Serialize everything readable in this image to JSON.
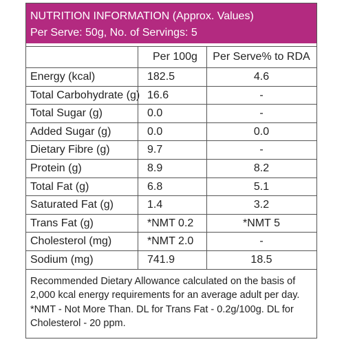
{
  "header": {
    "title": "NUTRITION INFORMATION (Approx. Values)",
    "subtitle": "Per Serve: 50g, No. of Servings: 5"
  },
  "table": {
    "columns": [
      "Per 100g",
      "Per Serve% to RDA"
    ],
    "rows": [
      [
        "Energy (kcal)",
        "182.5",
        "4.6"
      ],
      [
        "Total Carbohydrate (g)",
        "16.6",
        "-"
      ],
      [
        "Total Sugar (g)",
        "0.0",
        "-"
      ],
      [
        "Added Sugar (g)",
        "0.0",
        "0.0"
      ],
      [
        "Dietary Fibre (g)",
        "9.7",
        "-"
      ],
      [
        "Protein (g)",
        "8.9",
        "8.2"
      ],
      [
        "Total Fat (g)",
        "6.8",
        "5.1"
      ],
      [
        "Saturated Fat (g)",
        "1.4",
        "3.2"
      ],
      [
        "Trans Fat (g)",
        "*NMT 0.2",
        "*NMT 5"
      ],
      [
        "Cholesterol (mg)",
        "*NMT 2.0",
        "-"
      ],
      [
        "Sodium (mg)",
        "741.9",
        "18.5"
      ]
    ]
  },
  "footer": {
    "lines": [
      "Recommended Dietary Allowance calculated on the basis of",
      "2,000 kcal energy requirements for an average adult per day.",
      "*NMT - Not More Than. DL for Trans Fat - 0.2g/100g. DL for",
      "Cholesterol - 20 ppm."
    ]
  }
}
